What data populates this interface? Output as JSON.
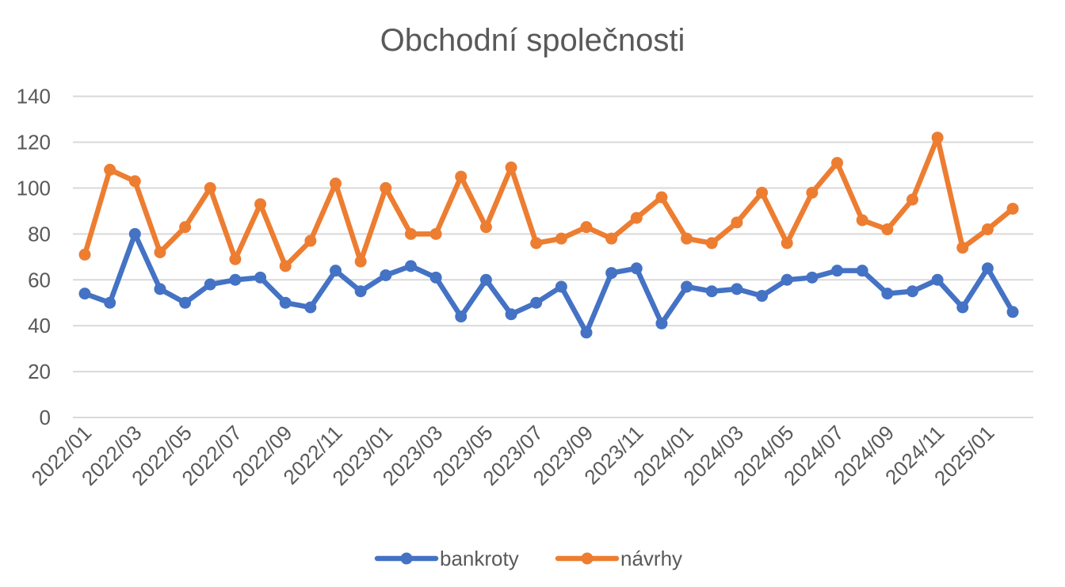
{
  "chart_data": {
    "type": "line",
    "title": "Obchodní společnosti",
    "xlabel": "",
    "ylabel": "",
    "ylim": [
      0,
      140
    ],
    "yticks": [
      0,
      20,
      40,
      60,
      80,
      100,
      120,
      140
    ],
    "grid": true,
    "legend": "bottom",
    "categories": [
      "2022/01",
      "2022/02",
      "2022/03",
      "2022/04",
      "2022/05",
      "2022/06",
      "2022/07",
      "2022/08",
      "2022/09",
      "2022/10",
      "2022/11",
      "2022/12",
      "2023/01",
      "2023/02",
      "2023/03",
      "2023/04",
      "2023/05",
      "2023/06",
      "2023/07",
      "2023/08",
      "2023/09",
      "2023/10",
      "2023/11",
      "2023/12",
      "2024/01",
      "2024/02",
      "2024/03",
      "2024/04",
      "2024/05",
      "2024/06",
      "2024/07",
      "2024/08",
      "2024/09",
      "2024/10",
      "2024/11",
      "2024/12",
      "2025/01",
      "2025/02"
    ],
    "tick_labels": [
      "2022/01",
      "2022/03",
      "2022/05",
      "2022/07",
      "2022/09",
      "2022/11",
      "2023/01",
      "2023/03",
      "2023/05",
      "2023/07",
      "2023/09",
      "2023/11",
      "2024/01",
      "2024/03",
      "2024/05",
      "2024/07",
      "2024/09",
      "2024/11",
      "2025/01"
    ],
    "series": [
      {
        "name": "bankroty",
        "color": "#4472c4",
        "values": [
          54,
          50,
          80,
          56,
          50,
          58,
          60,
          61,
          50,
          48,
          64,
          55,
          62,
          66,
          61,
          44,
          60,
          45,
          50,
          57,
          37,
          63,
          65,
          41,
          57,
          55,
          56,
          53,
          60,
          61,
          64,
          64,
          54,
          55,
          60,
          48,
          65,
          46
        ]
      },
      {
        "name": "návrhy",
        "color": "#ed7d31",
        "values": [
          71,
          108,
          103,
          72,
          83,
          100,
          69,
          93,
          66,
          77,
          102,
          68,
          100,
          80,
          80,
          105,
          83,
          109,
          76,
          78,
          83,
          78,
          87,
          96,
          78,
          76,
          85,
          98,
          76,
          98,
          111,
          86,
          82,
          95,
          122,
          74,
          82,
          91
        ]
      }
    ]
  }
}
